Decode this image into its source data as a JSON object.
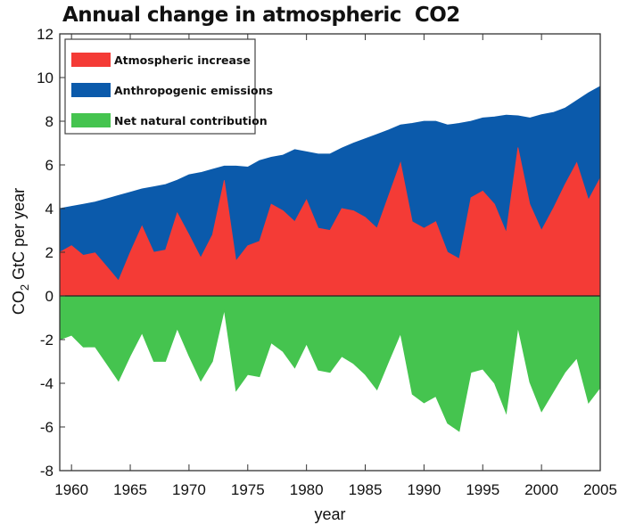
{
  "chart_data": {
    "type": "area",
    "title": "Annual change in atmospheric  CO2",
    "xlabel": "year",
    "ylabel": "CO2 GtC per year",
    "ylabel_parts": {
      "a": "CO",
      "sub": "2",
      "b": " GtC per year"
    },
    "xlim": [
      1959,
      2005
    ],
    "ylim": [
      -8,
      12
    ],
    "xticks": [
      1960,
      1965,
      1970,
      1975,
      1980,
      1985,
      1990,
      1995,
      2000,
      2005
    ],
    "yticks": [
      -8,
      -6,
      -4,
      -2,
      0,
      2,
      4,
      6,
      8,
      10,
      12
    ],
    "grid": false,
    "legend_placement": "top-left",
    "x": [
      1959,
      1960,
      1961,
      1962,
      1963,
      1964,
      1965,
      1966,
      1967,
      1968,
      1969,
      1970,
      1971,
      1972,
      1973,
      1974,
      1975,
      1976,
      1977,
      1978,
      1979,
      1980,
      1981,
      1982,
      1983,
      1984,
      1985,
      1986,
      1987,
      1988,
      1989,
      1990,
      1991,
      1992,
      1993,
      1994,
      1995,
      1996,
      1997,
      1998,
      1999,
      2000,
      2001,
      2002,
      2003,
      2004,
      2005
    ],
    "series": [
      {
        "name": "Atmospheric increase",
        "color": "#f43b36",
        "values": [
          2.0,
          2.3,
          1.86,
          1.97,
          1.34,
          0.7,
          2.0,
          3.2,
          2.0,
          2.1,
          3.8,
          2.8,
          1.75,
          2.8,
          5.3,
          1.6,
          2.3,
          2.5,
          4.2,
          3.9,
          3.4,
          4.4,
          3.1,
          3.0,
          4.0,
          3.9,
          3.6,
          3.1,
          4.6,
          6.1,
          3.4,
          3.1,
          3.4,
          2.0,
          1.7,
          4.5,
          4.8,
          4.2,
          2.9,
          6.8,
          4.2,
          3.0,
          4.0,
          5.1,
          6.1,
          4.4,
          5.4
        ]
      },
      {
        "name": "Anthropogenic emissions",
        "color": "#0b5aab",
        "values": [
          4.0,
          4.1,
          4.2,
          4.3,
          4.45,
          4.6,
          4.75,
          4.9,
          5.0,
          5.1,
          5.3,
          5.55,
          5.65,
          5.8,
          5.95,
          5.95,
          5.9,
          6.2,
          6.35,
          6.45,
          6.7,
          6.6,
          6.5,
          6.5,
          6.77,
          7.0,
          7.2,
          7.4,
          7.6,
          7.83,
          7.9,
          8.0,
          8.0,
          7.83,
          7.9,
          8.0,
          8.15,
          8.2,
          8.28,
          8.25,
          8.15,
          8.3,
          8.4,
          8.6,
          8.95,
          9.3,
          9.6
        ]
      },
      {
        "name": "Net natural contribution",
        "color": "#45c44f",
        "values": [
          -2.0,
          -1.8,
          -2.34,
          -2.33,
          -3.11,
          -3.9,
          -2.75,
          -1.7,
          -3.0,
          -3.0,
          -1.5,
          -2.75,
          -3.9,
          -3.0,
          -0.65,
          -4.35,
          -3.6,
          -3.7,
          -2.15,
          -2.55,
          -3.3,
          -2.2,
          -3.4,
          -3.5,
          -2.77,
          -3.1,
          -3.6,
          -4.3,
          -3.0,
          -1.73,
          -4.5,
          -4.9,
          -4.6,
          -5.83,
          -6.2,
          -3.5,
          -3.35,
          -4.0,
          -5.38,
          -1.45,
          -3.95,
          -5.3,
          -4.4,
          -3.5,
          -2.85,
          -4.9,
          -4.2
        ]
      }
    ]
  }
}
